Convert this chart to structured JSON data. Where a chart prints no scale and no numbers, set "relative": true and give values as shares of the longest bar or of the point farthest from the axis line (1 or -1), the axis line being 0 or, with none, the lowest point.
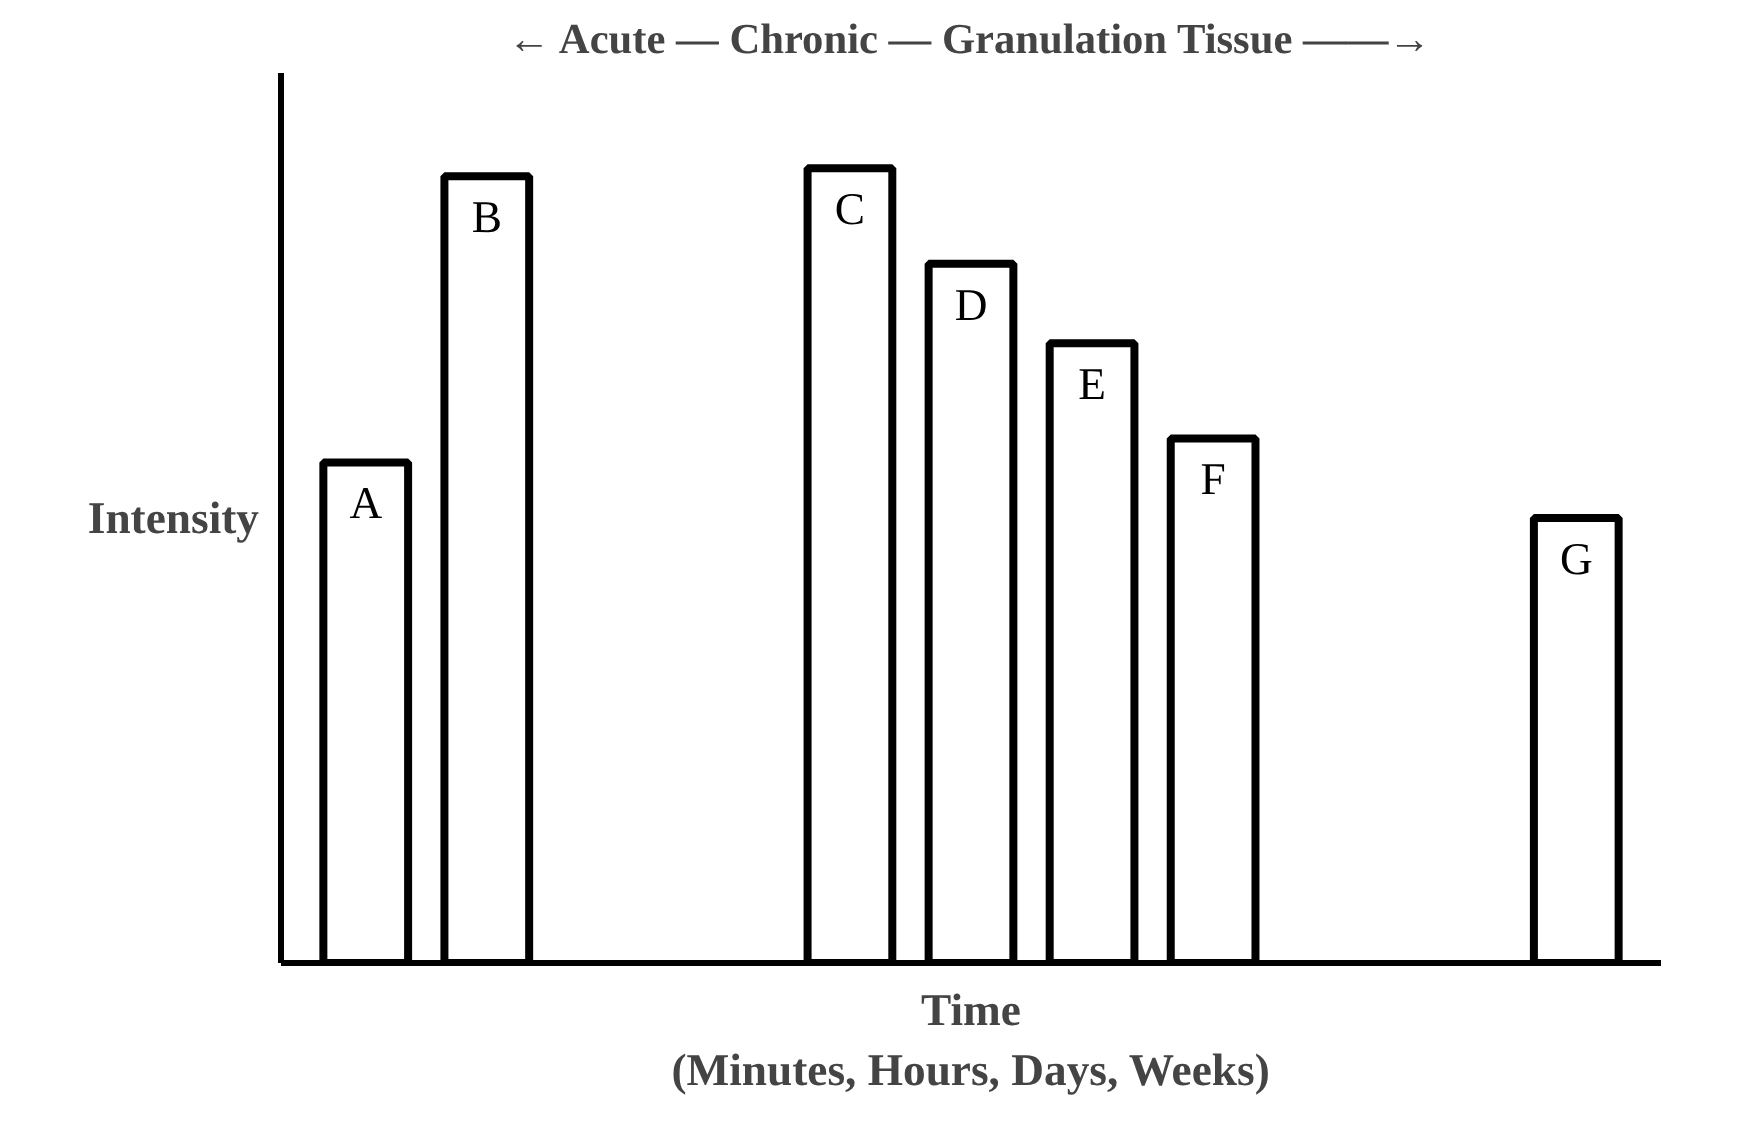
{
  "chart_data": {
    "type": "bar",
    "relative": true,
    "annotations": [
      "← Acute — Chronic — Granulation Tissue ——→"
    ],
    "xlabel": "Time\n(Minutes, Hours, Days, Weeks)",
    "ylabel": "Intensity",
    "categories": [
      "A",
      "B",
      null,
      null,
      "C",
      "D",
      "E",
      "F",
      null,
      null,
      "G"
    ],
    "values": [
      0.63,
      0.99,
      null,
      null,
      1,
      0.88,
      0.78,
      0.66,
      null,
      null,
      0.56
    ],
    "color": "#ffffff",
    "grid": false,
    "tick_labels": false
  }
}
